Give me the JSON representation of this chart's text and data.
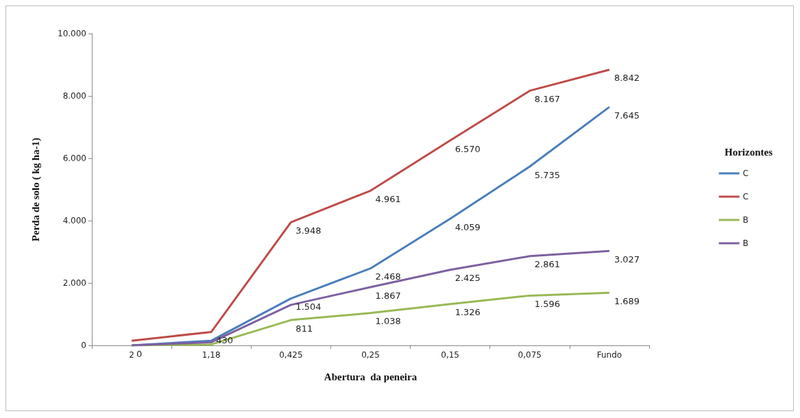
{
  "chart_data": {
    "type": "line",
    "xlabel": "Abertura  da peneira",
    "ylabel": "Perda de solo ( kg ha-1)",
    "legend_title": "Horizontes",
    "legend": "right",
    "grid": false,
    "marker": "none",
    "line_style": "solid",
    "categories": [
      "2",
      "1,18",
      "0,425",
      "0,25",
      "0,15",
      "0,075",
      "Fundo"
    ],
    "ylim": [
      0,
      10000
    ],
    "yticks": [
      0,
      {
        "value": 2000,
        "label": "2.000"
      },
      {
        "value": 4000,
        "label": "4.000"
      },
      {
        "value": 6000,
        "label": "6.000"
      },
      {
        "value": 8000,
        "label": "8.000"
      },
      {
        "value": 10000,
        "label": "10.000"
      }
    ],
    "series": [
      {
        "name": "C",
        "color": "#4a7ebb",
        "values": [
          0,
          150,
          1504,
          2468,
          4059,
          5735,
          7645
        ],
        "value_labels": [
          null,
          null,
          "1.504",
          "2.468",
          "4.059",
          "5.735",
          "7.645"
        ]
      },
      {
        "name": "C",
        "color": "#be4b48",
        "values": [
          150,
          430,
          3948,
          4961,
          6570,
          8167,
          8842
        ],
        "value_labels": [
          null,
          "430",
          "3.948",
          "4.961",
          "6.570",
          "8.167",
          "8.842"
        ]
      },
      {
        "name": "B",
        "color": "#98b954",
        "values": [
          0,
          30,
          811,
          1038,
          1326,
          1596,
          1689
        ],
        "value_labels": [
          "0",
          null,
          "811",
          "1.038",
          "1.326",
          "1.596",
          "1.689"
        ]
      },
      {
        "name": "B",
        "color": "#7d60a0",
        "values": [
          0,
          100,
          1300,
          1867,
          2425,
          2861,
          3027
        ],
        "value_labels": [
          null,
          null,
          null,
          "1.867",
          "2.425",
          "2.861",
          "3.027"
        ]
      }
    ]
  }
}
